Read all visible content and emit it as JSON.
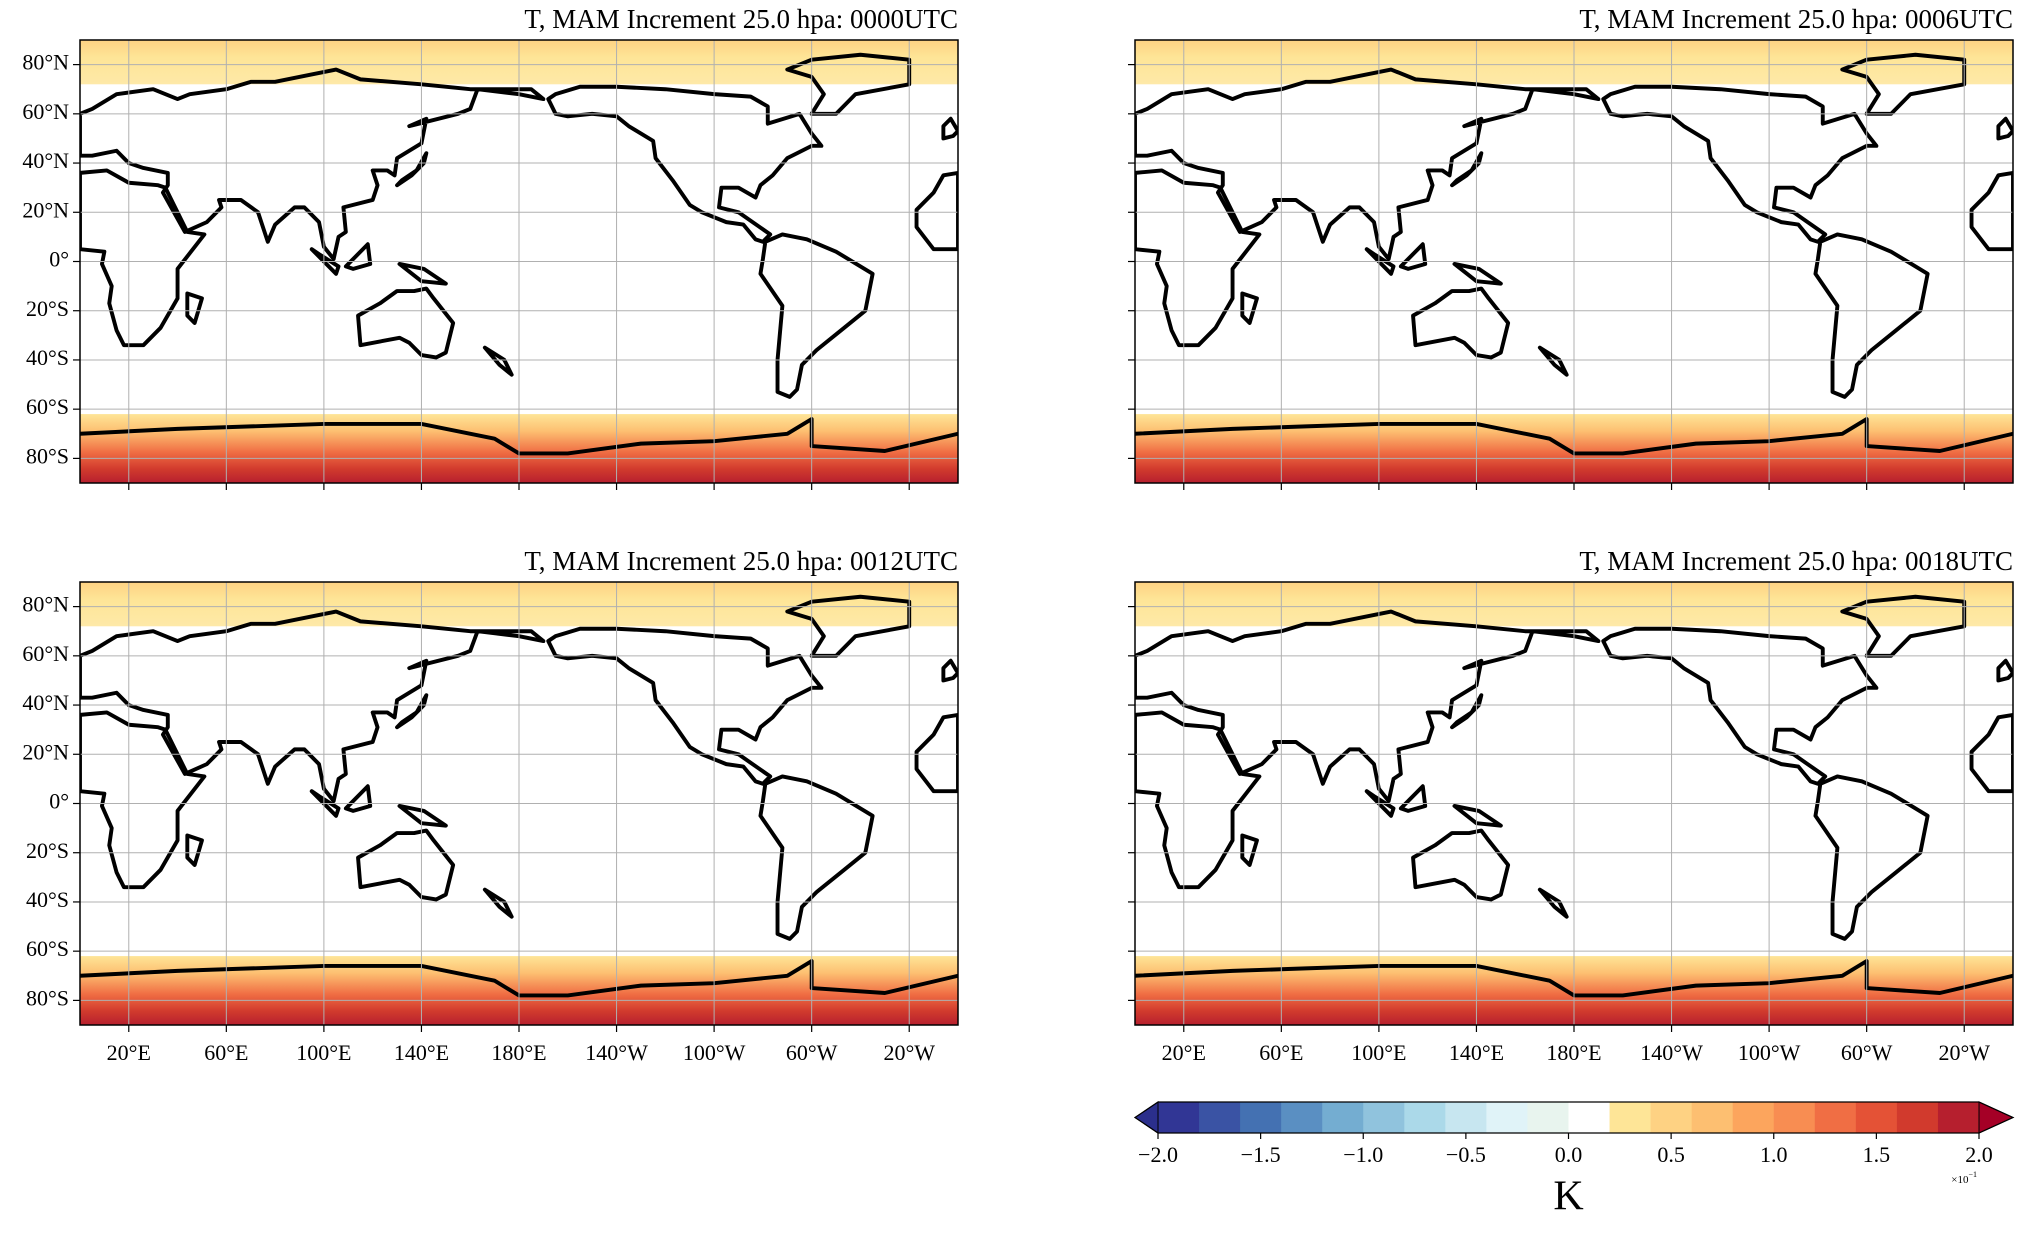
{
  "panels": [
    {
      "title": "T, MAM Increment 25.0 hpa: 0000UTC"
    },
    {
      "title": "T, MAM Increment 25.0 hpa: 0006UTC"
    },
    {
      "title": "T, MAM Increment 25.0 hpa: 0012UTC"
    },
    {
      "title": "T, MAM Increment 25.0 hpa: 0018UTC"
    }
  ],
  "xlim": [
    0,
    360
  ],
  "ylim": [
    -90,
    90
  ],
  "lat_ticks": [
    {
      "value": 80,
      "label": "80°N"
    },
    {
      "value": 60,
      "label": "60°N"
    },
    {
      "value": 40,
      "label": "40°N"
    },
    {
      "value": 20,
      "label": "20°N"
    },
    {
      "value": 0,
      "label": "0°"
    },
    {
      "value": -20,
      "label": "20°S"
    },
    {
      "value": -40,
      "label": "40°S"
    },
    {
      "value": -60,
      "label": "60°S"
    },
    {
      "value": -80,
      "label": "80°S"
    }
  ],
  "lon_ticks": [
    {
      "value": 20,
      "label": "20°E"
    },
    {
      "value": 60,
      "label": "60°E"
    },
    {
      "value": 100,
      "label": "100°E"
    },
    {
      "value": 140,
      "label": "140°E"
    },
    {
      "value": 180,
      "label": "180°E"
    },
    {
      "value": 220,
      "label": "140°W"
    },
    {
      "value": 260,
      "label": "100°W"
    },
    {
      "value": 300,
      "label": "60°W"
    },
    {
      "value": 340,
      "label": "20°W"
    }
  ],
  "colorbar": {
    "label": "K",
    "scale_base": "×10",
    "scale_exp": "−1",
    "lim": [
      -2,
      2
    ],
    "ticks": [
      {
        "value": -2,
        "label": "−2.0"
      },
      {
        "value": -1.5,
        "label": "−1.5"
      },
      {
        "value": -1,
        "label": "−1.0"
      },
      {
        "value": -0.5,
        "label": "−0.5"
      },
      {
        "value": 0,
        "label": "0.0"
      },
      {
        "value": 0.5,
        "label": "0.5"
      },
      {
        "value": 1,
        "label": "1.0"
      },
      {
        "value": 1.5,
        "label": "1.5"
      },
      {
        "value": 2,
        "label": "2.0"
      }
    ],
    "colors": [
      "#313695",
      "#3a53a4",
      "#4471b2",
      "#5a8fc2",
      "#74add1",
      "#90c3dd",
      "#abd9e9",
      "#c7e6f0",
      "#e0f3f8",
      "#e8f4ee",
      "#ffffff",
      "#fee597",
      "#fed283",
      "#fdbf71",
      "#fca55d",
      "#f88d52",
      "#f06e44",
      "#e45236",
      "#d13a2d",
      "#b61f2e"
    ],
    "under_color": "#2b2f8c",
    "over_color": "#a50026"
  }
}
